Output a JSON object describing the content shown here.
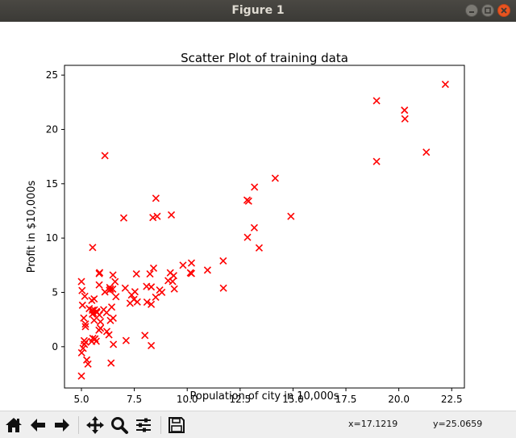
{
  "window": {
    "title": "Figure 1"
  },
  "chart_data": {
    "type": "scatter",
    "title": "Scatter Plot of training data",
    "xlabel": "Population of city in 10,000s",
    "ylabel": "Profit in $10,000s",
    "xlim": [
      4.2,
      23.1
    ],
    "ylim": [
      -3.8,
      25.9
    ],
    "xticks": [
      5.0,
      7.5,
      10.0,
      12.5,
      15.0,
      17.5,
      20.0,
      22.5
    ],
    "xtick_labels": [
      "5.0",
      "7.5",
      "10.0",
      "12.5",
      "15.0",
      "17.5",
      "20.0",
      "22.5"
    ],
    "yticks": [
      0,
      5,
      10,
      15,
      20,
      25
    ],
    "ytick_labels": [
      "0",
      "5",
      "10",
      "15",
      "20",
      "25"
    ],
    "grid": false,
    "marker": "x",
    "marker_color": "#ff0000",
    "series": [
      {
        "points": [
          [
            6.11,
            17.59
          ],
          [
            5.53,
            9.13
          ],
          [
            8.52,
            13.66
          ],
          [
            7.0,
            11.85
          ],
          [
            5.86,
            6.82
          ],
          [
            8.38,
            11.89
          ],
          [
            7.48,
            4.35
          ],
          [
            8.58,
            12.0
          ],
          [
            6.49,
            6.6
          ],
          [
            5.05,
            3.82
          ],
          [
            5.71,
            3.25
          ],
          [
            14.16,
            15.51
          ],
          [
            5.73,
            3.16
          ],
          [
            8.41,
            7.23
          ],
          [
            5.64,
            0.72
          ],
          [
            5.37,
            3.51
          ],
          [
            6.37,
            5.3
          ],
          [
            5.13,
            0.56
          ],
          [
            6.43,
            3.65
          ],
          [
            7.07,
            5.39
          ],
          [
            6.19,
            3.14
          ],
          [
            20.27,
            21.77
          ],
          [
            5.49,
            4.26
          ],
          [
            6.33,
            5.19
          ],
          [
            5.56,
            3.08
          ],
          [
            18.95,
            22.64
          ],
          [
            12.83,
            13.5
          ],
          [
            10.96,
            7.05
          ],
          [
            13.18,
            14.69
          ],
          [
            22.2,
            24.15
          ],
          [
            5.25,
            -1.22
          ],
          [
            6.59,
            5.99
          ],
          [
            9.25,
            12.13
          ],
          [
            5.19,
            1.85
          ],
          [
            9.36,
            6.54
          ],
          [
            8.51,
            4.56
          ],
          [
            7.64,
            4.12
          ],
          [
            5.61,
            3.39
          ],
          [
            11.71,
            5.39
          ],
          [
            5.84,
            6.73
          ],
          [
            8.0,
            1.04
          ],
          [
            5.83,
            1.52
          ],
          [
            7.53,
            5.06
          ],
          [
            5.52,
            3.36
          ],
          [
            9.39,
            5.32
          ],
          [
            10.15,
            6.8
          ],
          [
            5.6,
            2.43
          ],
          [
            5.84,
            5.69
          ],
          [
            12.85,
            10.07
          ],
          [
            5.2,
            0.42
          ],
          [
            5.03,
            5.17
          ],
          [
            7.37,
            4.76
          ],
          [
            8.7,
            5.22
          ],
          [
            6.5,
            2.63
          ],
          [
            9.1,
            6.08
          ],
          [
            6.11,
            5.04
          ],
          [
            5.08,
            -0.15
          ],
          [
            5.11,
            2.64
          ],
          [
            6.48,
            5.3
          ],
          [
            18.95,
            17.05
          ],
          [
            5.54,
            0.77
          ],
          [
            6.05,
            3.41
          ],
          [
            10.2,
            6.74
          ],
          [
            5.49,
            0.48
          ],
          [
            7.11,
            0.57
          ],
          [
            5.14,
            0.21
          ],
          [
            8.08,
            5.55
          ],
          [
            5.16,
            4.64
          ],
          [
            5.0,
            6.0
          ],
          [
            20.29,
            20.98
          ],
          [
            5.19,
            2.09
          ],
          [
            5.01,
            -0.56
          ],
          [
            6.37,
            2.41
          ],
          [
            5.31,
            -1.6
          ],
          [
            13.17,
            10.95
          ],
          [
            6.51,
            0.21
          ],
          [
            6.34,
            5.45
          ],
          [
            9.31,
            6.01
          ],
          [
            5.85,
            2.92
          ],
          [
            5.52,
            3.0
          ],
          [
            8.24,
            6.7
          ],
          [
            5.9,
            2.3
          ],
          [
            6.63,
            4.6
          ],
          [
            7.6,
            6.7
          ],
          [
            8.3,
            3.9
          ],
          [
            5.0,
            -2.7
          ],
          [
            5.9,
            1.7
          ],
          [
            9.2,
            6.8
          ],
          [
            8.8,
            5.0
          ],
          [
            12.9,
            13.4
          ],
          [
            13.4,
            9.1
          ],
          [
            14.9,
            12.0
          ],
          [
            21.3,
            17.9
          ],
          [
            9.8,
            7.5
          ],
          [
            6.4,
            -1.5
          ],
          [
            8.3,
            0.1
          ],
          [
            11.7,
            7.9
          ],
          [
            10.2,
            7.7
          ],
          [
            5.7,
            0.5
          ],
          [
            5.6,
            4.4
          ],
          [
            8.3,
            5.5
          ],
          [
            6.3,
            1.1
          ],
          [
            7.3,
            4.0
          ],
          [
            8.1,
            4.1
          ],
          [
            6.2,
            1.4
          ]
        ]
      }
    ]
  },
  "toolbar": {
    "home_icon": "home-icon",
    "back_icon": "back-arrow-icon",
    "forward_icon": "forward-arrow-icon",
    "pan_icon": "pan-move-icon",
    "zoom_icon": "zoom-magnifier-icon",
    "configure_icon": "configure-subplots-icon",
    "save_icon": "save-floppy-icon",
    "coord_x": "x=17.1219",
    "coord_y": "y=25.0659"
  }
}
